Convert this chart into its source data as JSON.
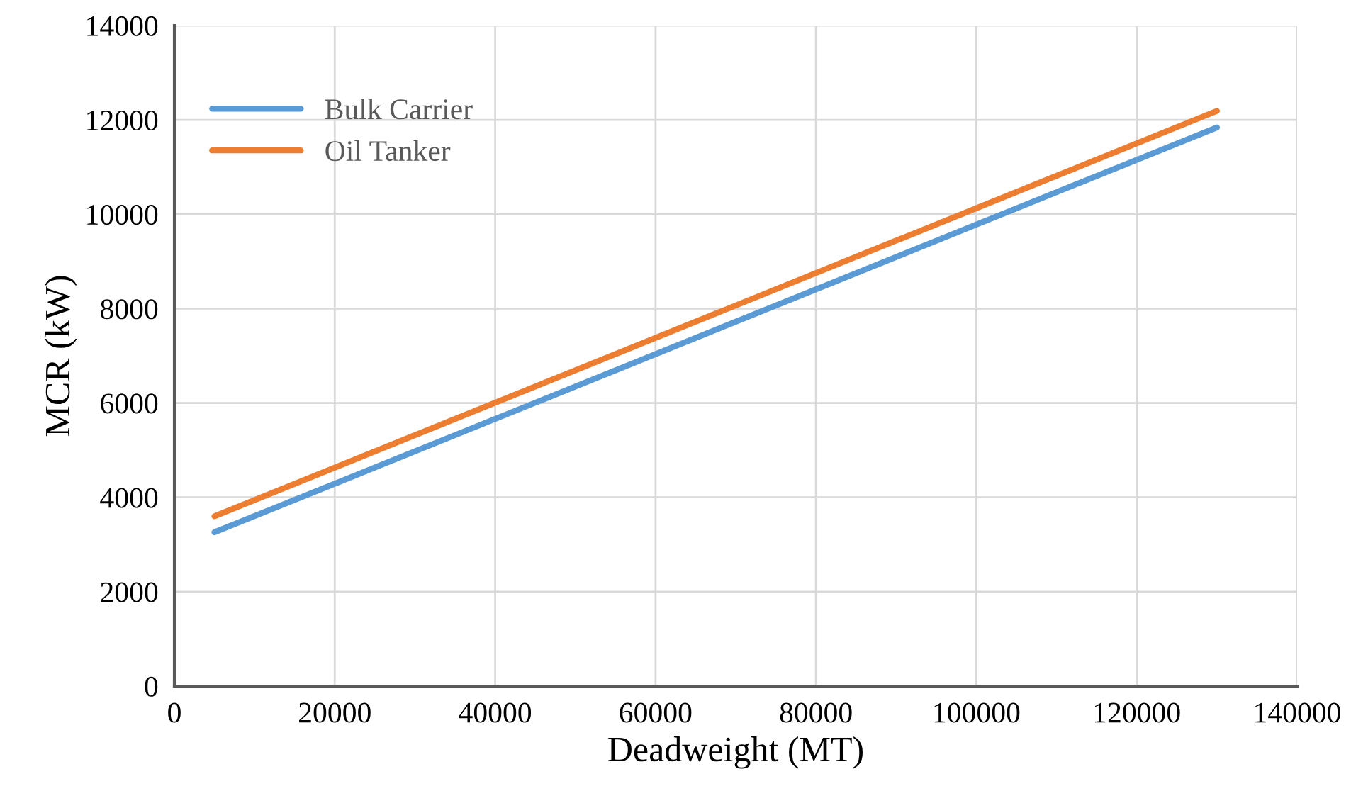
{
  "chart_data": {
    "type": "line",
    "xlabel": "Deadweight (MT)",
    "ylabel": "MCR (kW)",
    "x": [
      5000,
      130000
    ],
    "series": [
      {
        "name": "Bulk Carrier",
        "color": "#5b9bd5",
        "values": [
          3260,
          11840
        ]
      },
      {
        "name": "Oil Tanker",
        "color": "#ed7d31",
        "values": [
          3600,
          12190
        ]
      }
    ],
    "xlim": [
      0,
      140000
    ],
    "xticks": [
      0,
      20000,
      40000,
      60000,
      80000,
      100000,
      120000,
      140000
    ],
    "ylim": [
      0,
      14000
    ],
    "yticks": [
      0,
      2000,
      4000,
      6000,
      8000,
      10000,
      12000,
      14000
    ],
    "grid": true,
    "legend": "top left",
    "marker": "none",
    "line_style": "solid"
  }
}
